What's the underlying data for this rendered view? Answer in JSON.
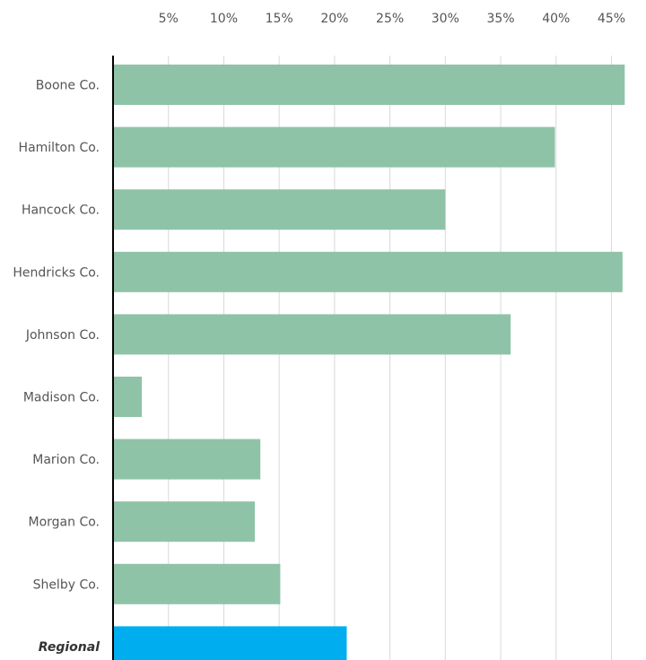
{
  "chart_data": {
    "type": "bar",
    "orientation": "horizontal",
    "categories": [
      "Boone Co.",
      "Hamilton Co.",
      "Hancock Co.",
      "Hendricks Co.",
      "Johnson Co.",
      "Madison Co.",
      "Marion Co.",
      "Morgan Co.",
      "Shelby Co.",
      "Regional"
    ],
    "values": [
      46.2,
      39.9,
      30.0,
      46.0,
      35.9,
      2.6,
      13.3,
      12.8,
      15.1,
      21.1
    ],
    "value_unit": "%",
    "highlight_category": "Regional",
    "xlim": [
      0,
      46.5
    ],
    "xticks": [
      5,
      10,
      15,
      20,
      25,
      30,
      35,
      40,
      45
    ],
    "xtick_labels": [
      "5%",
      "10%",
      "15%",
      "20%",
      "25%",
      "30%",
      "35%",
      "40%",
      "45%"
    ],
    "x_axis_position": "top",
    "grid": true,
    "legend": "none",
    "colors": {
      "bar": "#8fc3a8",
      "highlight": "#00aeef",
      "grid": "#d9d9d9"
    }
  }
}
